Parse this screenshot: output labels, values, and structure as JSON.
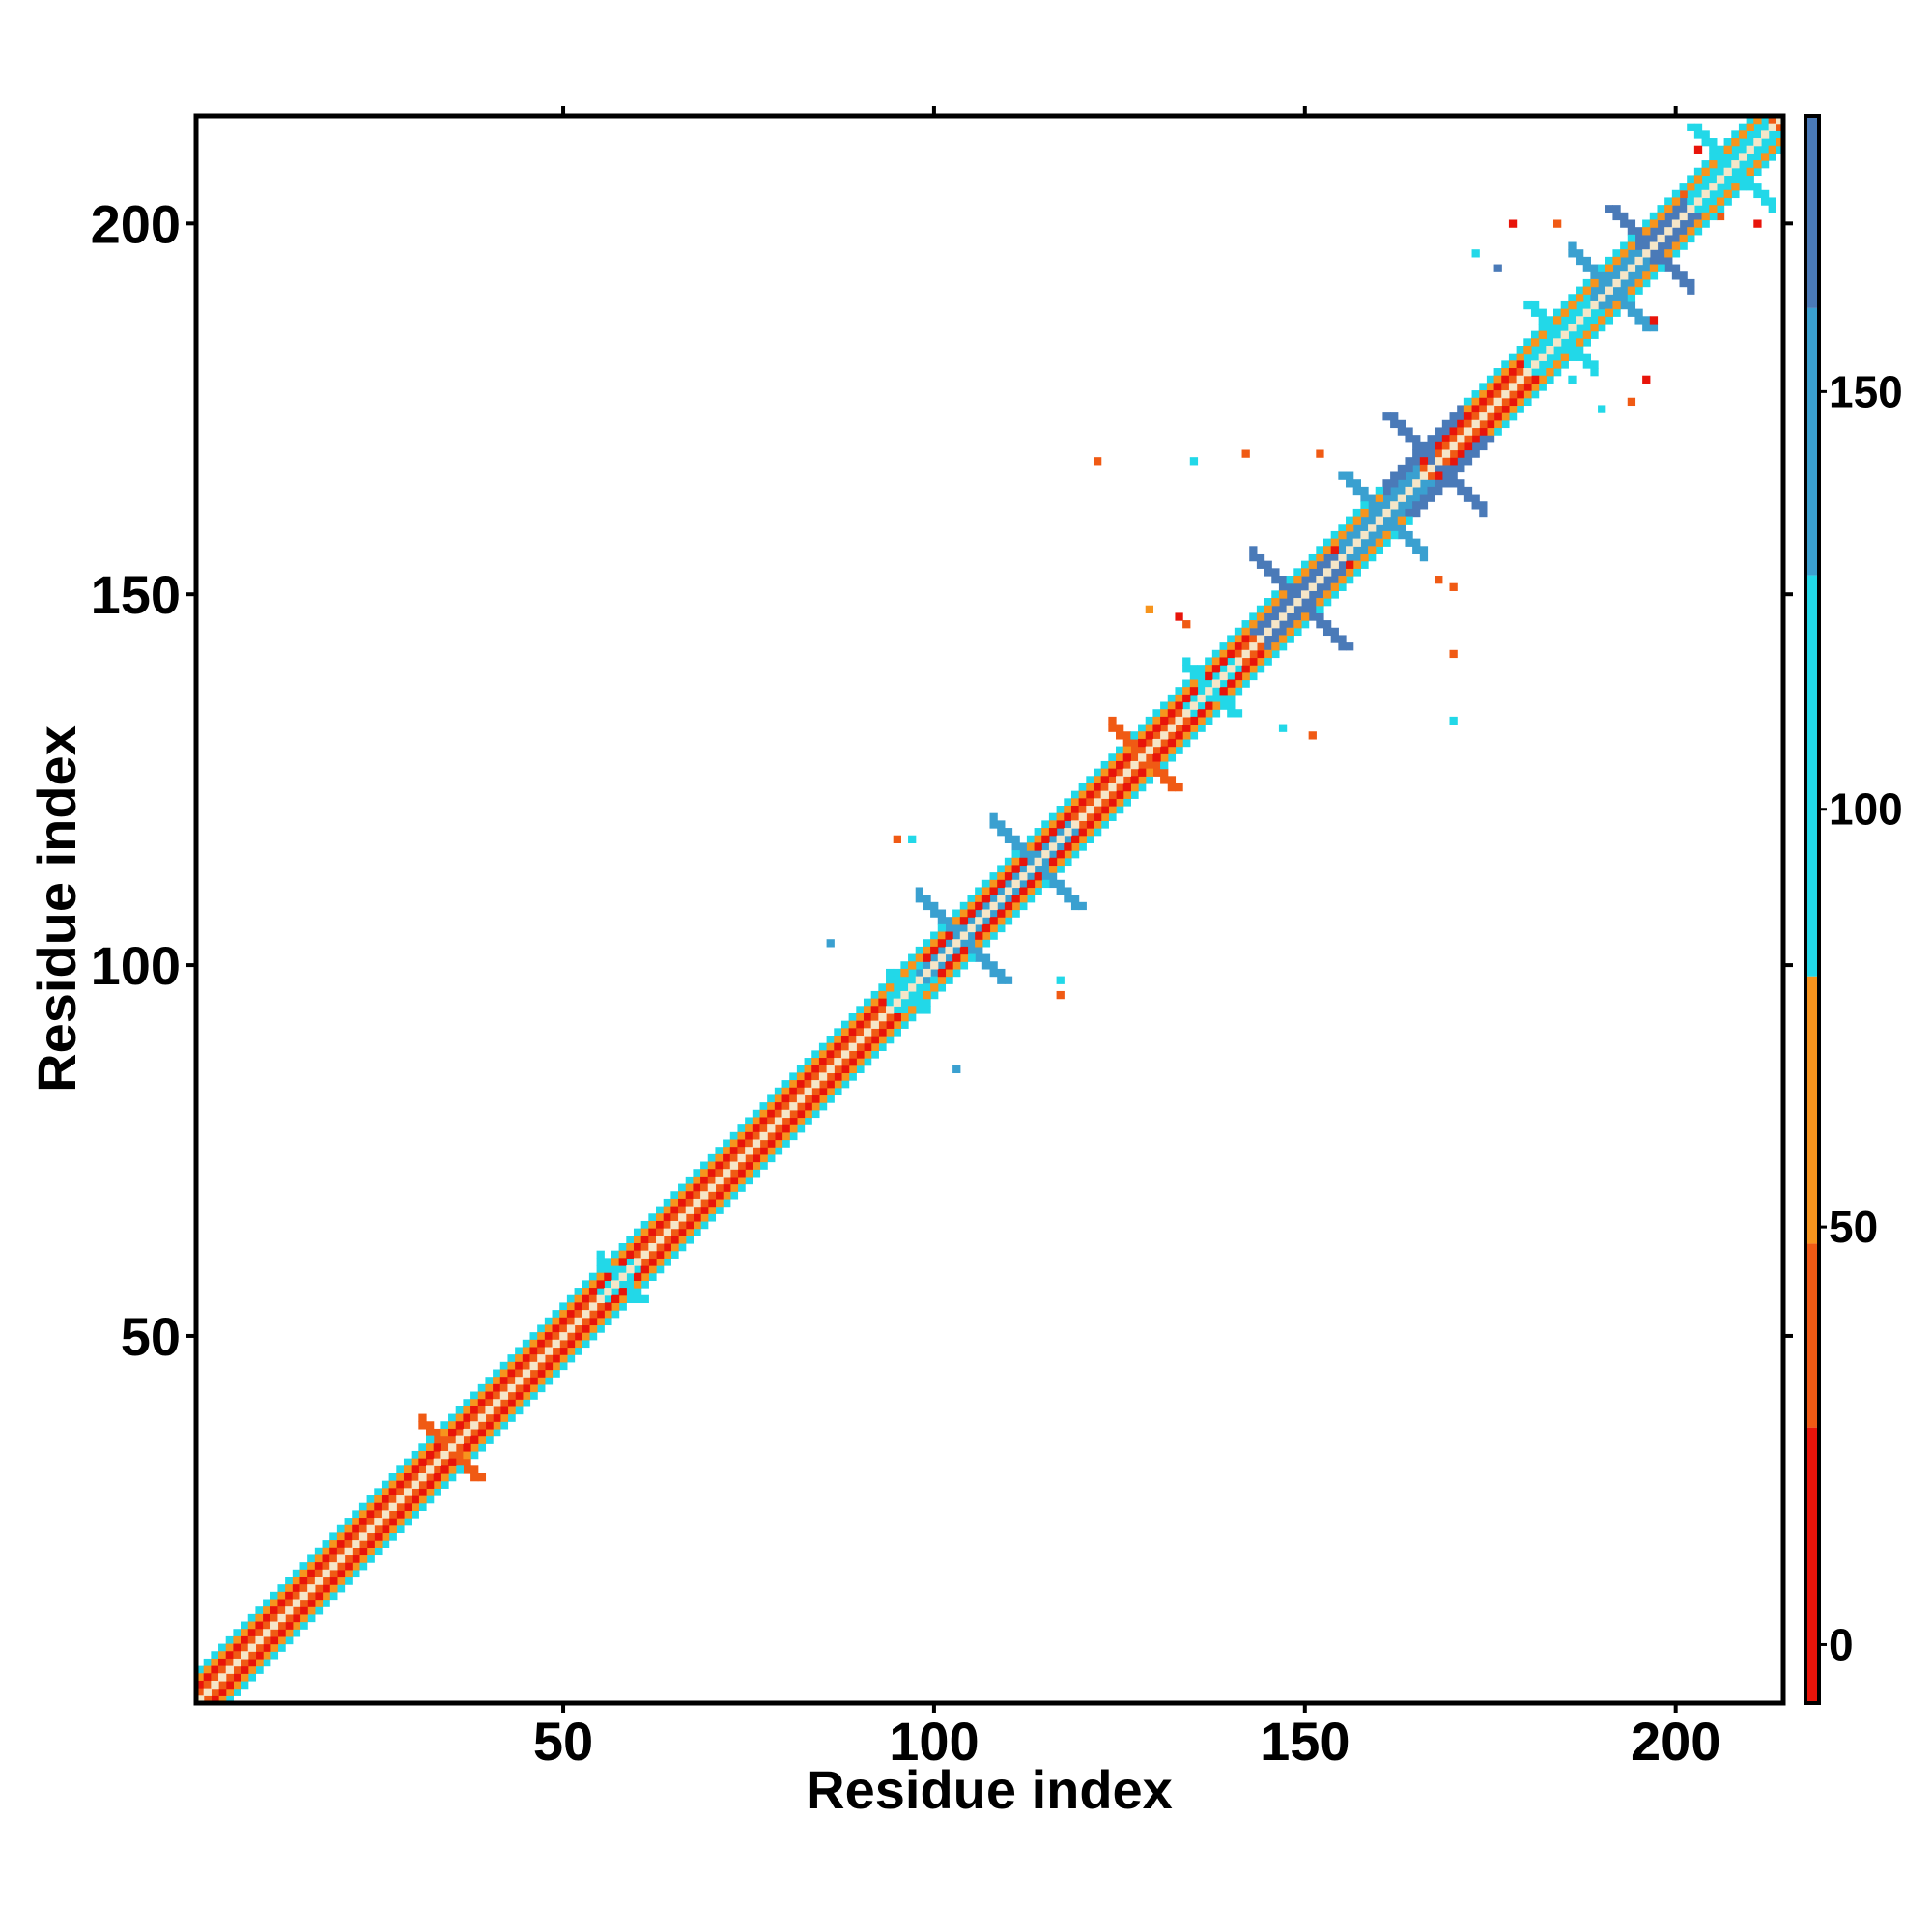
{
  "chart_data": {
    "type": "heatmap",
    "title": "",
    "xlabel": "Residue index",
    "ylabel": "Residue index",
    "xlim": [
      1,
      214
    ],
    "ylim": [
      1,
      214
    ],
    "xticks": [
      50,
      100,
      150,
      200
    ],
    "yticks": [
      50,
      100,
      150,
      200
    ],
    "grid": false,
    "colorbar": {
      "range": [
        -7,
        183
      ],
      "ticks": [
        0,
        50,
        100,
        150
      ],
      "bands": [
        {
          "from": -7,
          "to": 26,
          "color": "#e8140a"
        },
        {
          "from": 26,
          "to": 48,
          "color": "#f05a14"
        },
        {
          "from": 48,
          "to": 80,
          "color": "#f7941d"
        },
        {
          "from": 80,
          "to": 128,
          "color": "#22d8e8"
        },
        {
          "from": 128,
          "to": 160,
          "color": "#3aa0d0"
        },
        {
          "from": 160,
          "to": 183,
          "color": "#4a7ab8"
        }
      ]
    },
    "diagonal_band": {
      "from": 1,
      "to": 214,
      "colors_by_offset": {
        "0": "#f5e6c8",
        "1": "#f05a14",
        "2": "#e8140a",
        "3": "#f7941d",
        "4": "#22d8e8"
      }
    },
    "contact_crosses": [
      {
        "x": 104,
        "y": 103,
        "arm": 5,
        "color": "#3aa0d0"
      },
      {
        "x": 114,
        "y": 113,
        "arm": 5,
        "color": "#3aa0d0"
      },
      {
        "x": 137,
        "y": 137,
        "arm": 3,
        "color": "#22d8e8"
      },
      {
        "x": 150,
        "y": 148,
        "arm": 5,
        "color": "#4a7ab8"
      },
      {
        "x": 160,
        "y": 161,
        "arm": 5,
        "color": "#3aa0d0"
      },
      {
        "x": 166,
        "y": 169,
        "arm": 5,
        "color": "#4a7ab8"
      },
      {
        "x": 184,
        "y": 185,
        "arm": 4,
        "color": "#22d8e8"
      },
      {
        "x": 192,
        "y": 190,
        "arm": 4,
        "color": "#3aa0d0"
      },
      {
        "x": 196,
        "y": 197,
        "arm": 5,
        "color": "#4a7ab8"
      },
      {
        "x": 207,
        "y": 208,
        "arm": 5,
        "color": "#22d8e8"
      },
      {
        "x": 96,
        "y": 97,
        "arm": 2,
        "color": "#22d8e8"
      },
      {
        "x": 58,
        "y": 57,
        "arm": 2,
        "color": "#22d8e8"
      },
      {
        "x": 35,
        "y": 34,
        "arm": 3,
        "color": "#f05a14"
      },
      {
        "x": 128,
        "y": 128,
        "arm": 4,
        "color": "#f05a14"
      }
    ],
    "scattered_cells": [
      {
        "x": 95,
        "y": 117,
        "color": "#f05a14"
      },
      {
        "x": 97,
        "y": 117,
        "color": "#22d8e8"
      },
      {
        "x": 86,
        "y": 103,
        "color": "#3aa0d0"
      },
      {
        "x": 103,
        "y": 86,
        "color": "#3aa0d0"
      },
      {
        "x": 117,
        "y": 96,
        "color": "#f05a14"
      },
      {
        "x": 117,
        "y": 98,
        "color": "#22d8e8"
      },
      {
        "x": 118,
        "y": 118,
        "color": "#f05a14"
      },
      {
        "x": 133,
        "y": 147,
        "color": "#e8140a"
      },
      {
        "x": 134,
        "y": 146,
        "color": "#f05a14"
      },
      {
        "x": 135,
        "y": 168,
        "color": "#22d8e8"
      },
      {
        "x": 142,
        "y": 169,
        "color": "#f05a14"
      },
      {
        "x": 147,
        "y": 132,
        "color": "#22d8e8"
      },
      {
        "x": 151,
        "y": 131,
        "color": "#f05a14"
      },
      {
        "x": 152,
        "y": 169,
        "color": "#f05a14"
      },
      {
        "x": 170,
        "y": 133,
        "color": "#22d8e8"
      },
      {
        "x": 170,
        "y": 142,
        "color": "#f05a14"
      },
      {
        "x": 170,
        "y": 151,
        "color": "#f05a14"
      },
      {
        "x": 168,
        "y": 152,
        "color": "#f05a14"
      },
      {
        "x": 186,
        "y": 179,
        "color": "#22d8e8"
      },
      {
        "x": 190,
        "y": 175,
        "color": "#22d8e8"
      },
      {
        "x": 194,
        "y": 176,
        "color": "#f05a14"
      },
      {
        "x": 196,
        "y": 179,
        "color": "#e8140a"
      },
      {
        "x": 173,
        "y": 196,
        "color": "#22d8e8"
      },
      {
        "x": 176,
        "y": 194,
        "color": "#4a7ab8"
      },
      {
        "x": 178,
        "y": 200,
        "color": "#e8140a"
      },
      {
        "x": 184,
        "y": 200,
        "color": "#f05a14"
      },
      {
        "x": 197,
        "y": 187,
        "color": "#e8140a"
      },
      {
        "x": 203,
        "y": 210,
        "color": "#e8140a"
      },
      {
        "x": 201,
        "y": 204,
        "color": "#f05a14"
      },
      {
        "x": 211,
        "y": 200,
        "color": "#e8140a"
      },
      {
        "x": 206,
        "y": 201,
        "color": "#f05a14"
      },
      {
        "x": 129,
        "y": 148,
        "color": "#f7941d"
      },
      {
        "x": 122,
        "y": 168,
        "color": "#f05a14"
      }
    ]
  }
}
